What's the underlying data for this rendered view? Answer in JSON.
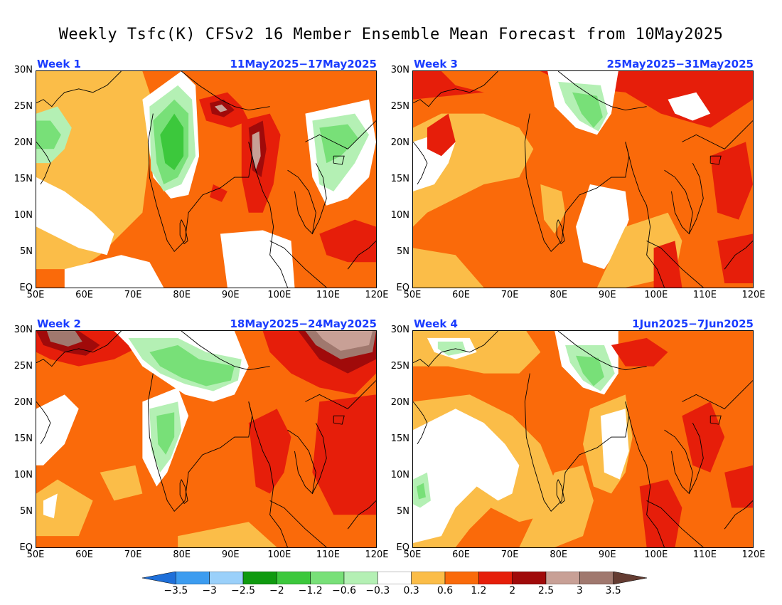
{
  "title": "Weekly Tsfc(K) CFSv2 16 Member Ensemble Mean Forecast from 10May2025",
  "panels": [
    {
      "week": "Week 1",
      "dates": "11May2025−17May2025"
    },
    {
      "week": "Week 3",
      "dates": "25May2025−31May2025"
    },
    {
      "week": "Week 2",
      "dates": "18May2025−24May2025"
    },
    {
      "week": "Week 4",
      "dates": "1Jun2025−7Jun2025"
    }
  ],
  "lat_labels": [
    "30N",
    "25N",
    "20N",
    "15N",
    "10N",
    "5N",
    "EQ"
  ],
  "lon_labels": [
    "50E",
    "60E",
    "70E",
    "80E",
    "90E",
    "100E",
    "110E",
    "120E"
  ],
  "colorbar": {
    "colors": [
      "#1e6fd9",
      "#3c9cf0",
      "#9ad0fa",
      "#0f9a0f",
      "#3cc83c",
      "#78e078",
      "#b4f0b4",
      "#ffffff",
      "#fbbd48",
      "#fa6a0a",
      "#e61e0a",
      "#a00a0a",
      "#c8a096",
      "#a0786e",
      "#643c32"
    ],
    "labels": [
      "−3.5",
      "−3",
      "−2.5",
      "−2",
      "−1.2",
      "−0.6",
      "−0.3",
      "0.3",
      "0.6",
      "1.2",
      "2",
      "2.5",
      "3",
      "3.5"
    ]
  }
}
